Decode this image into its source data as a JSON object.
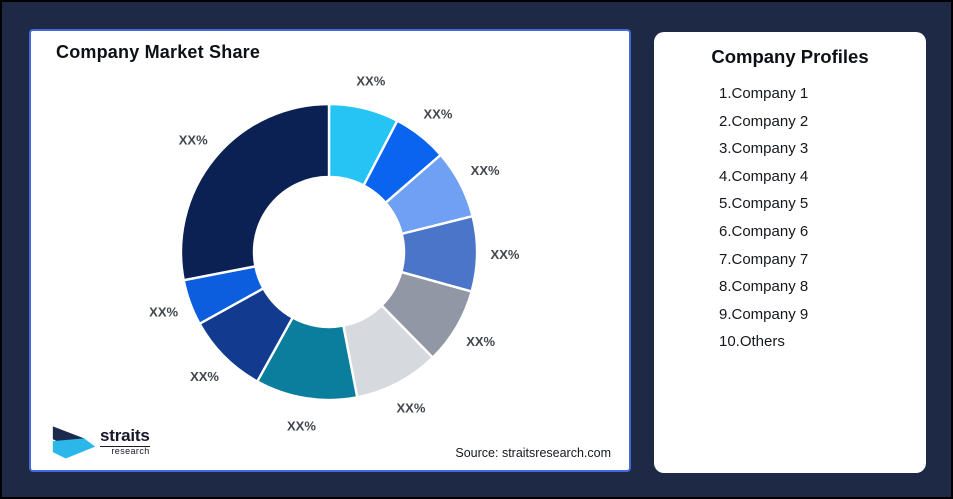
{
  "chart_card": {
    "title": "Company Market Share",
    "source": "Source: straitsresearch.com",
    "border_color": "#4169D8"
  },
  "logo": {
    "name": "straits",
    "sub": "research",
    "mark_navy": "#1C2B4D",
    "mark_cyan": "#2BB7E9"
  },
  "profiles": {
    "title": "Company Profiles",
    "items": [
      "1.Company 1",
      "2.Company 2",
      "3.Company 3",
      "4.Company 4",
      "5.Company 5",
      "6.Company 6",
      "7.Company 7",
      "8.Company 8",
      "9.Company 9",
      "10.Others"
    ]
  },
  "chart_data": {
    "type": "pie",
    "donut": true,
    "title": "Company Market Share",
    "inner_radius_ratio": 0.51,
    "label_text_all": "XX%",
    "slices": [
      {
        "label": "XX%",
        "company": "Company 1",
        "color": "#25C4F5",
        "start_deg": 0,
        "end_deg": 27.5,
        "approx_percent": 7.6
      },
      {
        "label": "XX%",
        "company": "Company 2",
        "color": "#0B64F0",
        "start_deg": 27.5,
        "end_deg": 49,
        "approx_percent": 6.0
      },
      {
        "label": "XX%",
        "company": "Company 3",
        "color": "#6FA0F3",
        "start_deg": 49,
        "end_deg": 76,
        "approx_percent": 7.5
      },
      {
        "label": "XX%",
        "company": "Company 4",
        "color": "#4A75C8",
        "start_deg": 76,
        "end_deg": 105.5,
        "approx_percent": 8.2
      },
      {
        "label": "XX%",
        "company": "Company 5",
        "color": "#9197A5",
        "start_deg": 105.5,
        "end_deg": 135.5,
        "approx_percent": 8.3
      },
      {
        "label": "XX%",
        "company": "Company 6",
        "color": "#D6D9DE",
        "start_deg": 135.5,
        "end_deg": 169,
        "approx_percent": 9.3
      },
      {
        "label": "XX%",
        "company": "Company 7",
        "color": "#0B7E9D",
        "start_deg": 169,
        "end_deg": 209,
        "approx_percent": 11.1
      },
      {
        "label": "XX%",
        "company": "Company 8",
        "color": "#123A8E",
        "start_deg": 209,
        "end_deg": 241,
        "approx_percent": 8.9
      },
      {
        "label": "XX%",
        "company": "Company 9",
        "color": "#0C5EDE",
        "start_deg": 241,
        "end_deg": 259,
        "approx_percent": 5.0
      },
      {
        "label": "XX%",
        "company": "Others",
        "color": "#0B2153",
        "start_deg": 259,
        "end_deg": 360,
        "approx_percent": 28.1
      }
    ]
  }
}
